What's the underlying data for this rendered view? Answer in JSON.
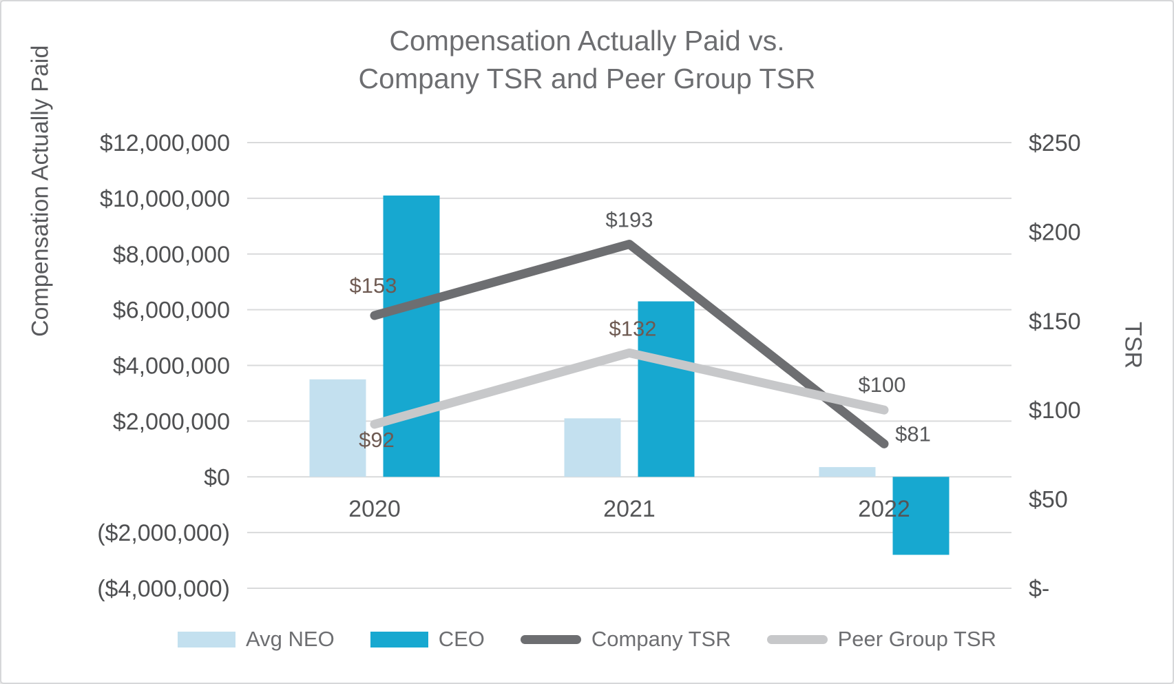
{
  "title": {
    "line1": "Compensation Actually Paid vs.",
    "line2": "Company TSR and Peer Group TSR"
  },
  "left_axis": {
    "title": "Compensation Actually Paid",
    "tick_labels": [
      "$12,000,000",
      "$10,000,000",
      "$8,000,000",
      "$6,000,000",
      "$4,000,000",
      "$2,000,000",
      "$0",
      "($2,000,000)",
      "($4,000,000)"
    ]
  },
  "right_axis": {
    "title": "TSR",
    "tick_labels": [
      "$250",
      "$200",
      "$150",
      "$100",
      "$50",
      "$-"
    ]
  },
  "legend": {
    "items": [
      {
        "label": "Avg NEO",
        "marker": "bar",
        "color": "#c3e0ef"
      },
      {
        "label": "CEO",
        "marker": "bar",
        "color": "#17a8d0"
      },
      {
        "label": "Company TSR",
        "marker": "line",
        "color": "#6d6e71"
      },
      {
        "label": "Peer Group TSR",
        "marker": "line",
        "color": "#c7c8ca"
      }
    ]
  },
  "colors": {
    "gridline": "#d9dadb",
    "tick_text": "#4f5052",
    "year_text": "#545557",
    "data_label_default": "#58595b",
    "data_label_warm": "#6e5a52",
    "title_text": "#6d6e71"
  },
  "chart_data": {
    "type": "combo-bar-line",
    "categories": [
      "2020",
      "2021",
      "2022"
    ],
    "series": [
      {
        "name": "Avg NEO",
        "type": "bar",
        "axis": "left",
        "color": "#c3e0ef",
        "values": [
          3500000,
          2100000,
          350000
        ]
      },
      {
        "name": "CEO",
        "type": "bar",
        "axis": "left",
        "color": "#17a8d0",
        "values": [
          10100000,
          6300000,
          -2800000
        ]
      },
      {
        "name": "Company TSR",
        "type": "line",
        "axis": "right",
        "color": "#6d6e71",
        "values": [
          153,
          193,
          81
        ],
        "data_labels": [
          "$153",
          "$193",
          "$81"
        ],
        "label_offsets": [
          [
            -2,
            -33
          ],
          [
            0,
            -25
          ],
          [
            42,
            -4
          ]
        ],
        "label_colors": [
          "#6e5a52",
          "#58595b",
          "#58595b"
        ]
      },
      {
        "name": "Peer Group TSR",
        "type": "line",
        "axis": "right",
        "color": "#c7c8ca",
        "values": [
          92,
          132,
          100
        ],
        "data_labels": [
          "$92",
          "$132",
          "$100"
        ],
        "label_offsets": [
          [
            3,
            33
          ],
          [
            5,
            -25
          ],
          [
            -3,
            -26
          ]
        ],
        "label_colors": [
          "#6e5a52",
          "#6e5a52",
          "#58595b"
        ]
      }
    ],
    "left_ylim": [
      -4000000,
      12000000
    ],
    "left_tick_step": 2000000,
    "right_ylim": [
      0,
      250
    ],
    "right_tick_step": 50,
    "grid": true,
    "legend_position": "bottom",
    "title": "Compensation Actually Paid vs. Company TSR and Peer Group TSR",
    "left_axis_label": "Compensation Actually Paid",
    "right_axis_label": "TSR"
  }
}
